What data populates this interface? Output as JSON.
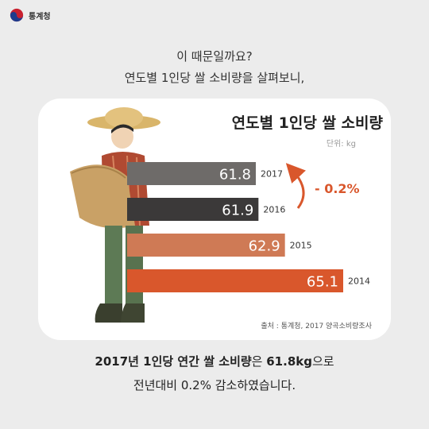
{
  "header": {
    "logo_text": "통계청"
  },
  "intro": {
    "line1": "이 때문일까요?",
    "line2": "연도별 1인당 쌀 소비량을 살펴보니,"
  },
  "chart_data": {
    "type": "bar",
    "title": "연도별 1인당 쌀 소비량",
    "unit": "단위: kg",
    "categories": [
      "2017",
      "2016",
      "2015",
      "2014"
    ],
    "values": [
      61.8,
      61.9,
      62.9,
      65.1
    ],
    "colors": [
      "#6e6b69",
      "#3b3939",
      "#cf7a55",
      "#d9572c"
    ],
    "annotation": "- 0.2%",
    "source": "출처 : 통계청, 2017 양곡소비량조사"
  },
  "summary": {
    "line1_bold": "2017년 1인당 연간 쌀 소비량",
    "line1_mid": "은 ",
    "line1_bold2": "61.8kg",
    "line1_end": "으로",
    "line2": "전년대비 0.2% 감소하였습니다."
  },
  "colors": {
    "background": "#ececec",
    "card": "#ffffff",
    "accent": "#d9572c"
  }
}
